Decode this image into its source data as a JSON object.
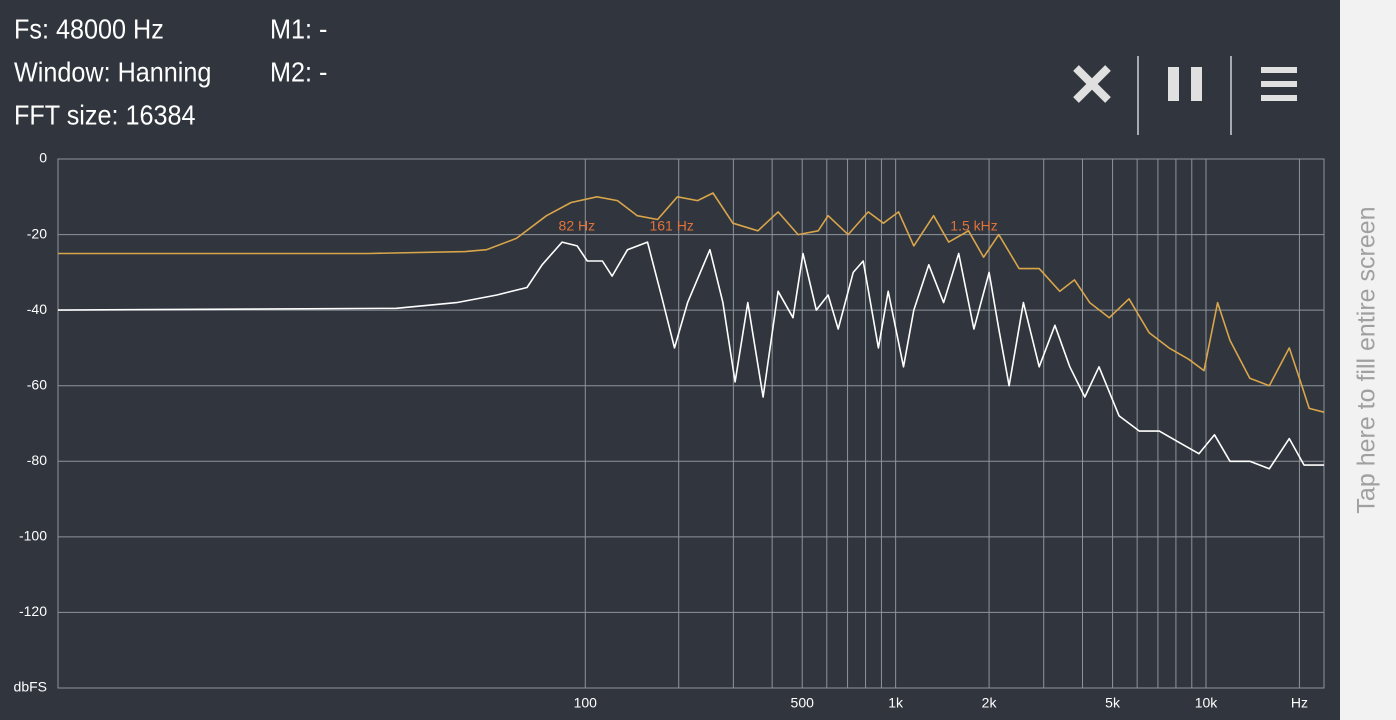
{
  "header": {
    "fs": "Fs: 48000 Hz",
    "window": "Window: Hanning",
    "fft_size": "FFT size: 16384",
    "m1": "M1: -",
    "m2": "M2: -"
  },
  "side_button": "Tap here to fill entire screen",
  "chart_data": {
    "type": "line",
    "log_x": true,
    "grid": true,
    "xlim": [
      2,
      24000
    ],
    "ylim": [
      -140,
      0
    ],
    "xticks": [
      100,
      500,
      {
        "value": 1000,
        "label": "1k"
      },
      {
        "value": 2000,
        "label": "2k"
      },
      {
        "value": 5000,
        "label": "5k"
      },
      {
        "value": 10000,
        "label": "10k"
      },
      {
        "value": 20000,
        "label": "Hz"
      }
    ],
    "x_minor_grid": [
      200,
      300,
      400,
      600,
      700,
      800,
      900,
      3000,
      4000,
      6000,
      7000,
      8000,
      9000
    ],
    "yticks": [
      0,
      -20,
      -40,
      -60,
      -80,
      -100,
      -120,
      {
        "value": -140,
        "label": "dbFS"
      }
    ],
    "annotation_color": "#e0733a",
    "annotations": [
      {
        "text": "82 Hz",
        "x": 82
      },
      {
        "text": "161 Hz",
        "x": 161
      },
      {
        "text": "1.5 kHz",
        "x": 1500
      }
    ],
    "series": [
      {
        "color": "#d9a54a",
        "x": [
          2,
          20,
          41,
          48,
          60,
          75,
          90,
          109,
          127,
          147,
          171,
          198,
          230,
          258,
          299,
          360,
          418,
          485,
          563,
          606,
          703,
          816,
          913,
          1022,
          1144,
          1325,
          1482,
          1717,
          1920,
          2150,
          2500,
          2900,
          3380,
          3770,
          4220,
          4880,
          5650,
          6560,
          7600,
          8800,
          9850,
          10900,
          11950,
          13840,
          16000,
          18550,
          20000,
          21500,
          24000
        ],
        "values": [
          -25,
          -25,
          -24.5,
          -24,
          -21,
          -15,
          -11.5,
          -10,
          -11,
          -15,
          -16,
          -10,
          -11,
          -9,
          -17,
          -19,
          -14,
          -20,
          -19,
          -15,
          -20,
          -14,
          -17,
          -14,
          -23,
          -15,
          -22,
          -19,
          -26,
          -20,
          -29,
          -29,
          -35,
          -32,
          -38,
          -42,
          -37,
          -46,
          -50,
          -53,
          -56,
          -38,
          -48,
          -58,
          -60,
          -50,
          -58,
          -66,
          -67
        ]
      },
      {
        "color": "#ffffff",
        "x": [
          2,
          24.6,
          38.5,
          51.9,
          64.9,
          72.6,
          84.2,
          94.2,
          101.5,
          113.5,
          122,
          136.8,
          158.6,
          177,
          193.9,
          213.7,
          252,
          277.6,
          304,
          334,
          374,
          418,
          467,
          503,
          555,
          606,
          653,
          730,
          786,
          880,
          946,
          1060,
          1144,
          1279,
          1427,
          1597,
          1787,
          2000,
          2150,
          2320,
          2580,
          2900,
          3260,
          3640,
          4070,
          4520,
          5250,
          6100,
          7070,
          8190,
          9490,
          10650,
          11950,
          13840,
          16000,
          18550,
          20700,
          24000
        ],
        "values": [
          -40,
          -39.5,
          -38,
          -36,
          -34,
          -28,
          -22,
          -23,
          -27,
          -27,
          -31,
          -24,
          -22,
          -37,
          -50,
          -38,
          -24,
          -38,
          -59,
          -38,
          -63,
          -35,
          -42,
          -25,
          -40,
          -36,
          -45,
          -30,
          -27,
          -50,
          -35,
          -55,
          -40,
          -28,
          -38,
          -25,
          -45,
          -30,
          -45,
          -60,
          -38,
          -55,
          -44,
          -55,
          -63,
          -55,
          -68,
          -72,
          -72,
          -75,
          -78,
          -73,
          -80,
          -80,
          -82,
          -74,
          -81,
          -81
        ]
      }
    ]
  }
}
